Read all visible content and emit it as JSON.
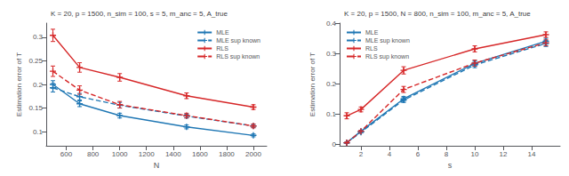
{
  "chart_data": [
    {
      "type": "line",
      "title": "K = 20, p = 1500, n_sim = 100, s = 5, m_anc = 5, A_true",
      "xlabel": "N",
      "ylabel": "Estimation error of T",
      "x": [
        500,
        700,
        1000,
        1500,
        2000
      ],
      "xlim": [
        450,
        2100
      ],
      "ylim": [
        0.07,
        0.33
      ],
      "xticks": [
        600,
        800,
        1000,
        1200,
        1400,
        1600,
        1800,
        2000
      ],
      "yticks": [
        0.1,
        0.15,
        0.2,
        0.25,
        0.3
      ],
      "grid": false,
      "legend": "upper right",
      "series": [
        {
          "name": "MLE",
          "color": "#1f77b4",
          "line_style": "solid",
          "marker": "plus",
          "values": [
            0.2,
            0.159,
            0.134,
            0.11,
            0.092
          ],
          "errors": [
            0.008,
            0.006,
            0.005,
            0.004,
            0.003
          ]
        },
        {
          "name": "MLE sup known",
          "color": "#1f77b4",
          "line_style": "dashed",
          "marker": "plus",
          "values": [
            0.193,
            0.174,
            0.156,
            0.133,
            0.112
          ],
          "errors": [
            0.009,
            0.007,
            0.006,
            0.004,
            0.003
          ]
        },
        {
          "name": "RLS",
          "color": "#d62728",
          "line_style": "solid",
          "marker": "plus",
          "values": [
            0.304,
            0.236,
            0.215,
            0.176,
            0.152
          ],
          "errors": [
            0.013,
            0.01,
            0.008,
            0.006,
            0.005
          ]
        },
        {
          "name": "RLS sup known",
          "color": "#d62728",
          "line_style": "dashed",
          "marker": "plus",
          "values": [
            0.228,
            0.188,
            0.157,
            0.134,
            0.112
          ],
          "errors": [
            0.011,
            0.009,
            0.007,
            0.005,
            0.004
          ]
        }
      ]
    },
    {
      "type": "line",
      "title": "K = 20, p = 1500, N = 800, n_sim = 100, m_anc = 5, A_true",
      "xlabel": "s",
      "ylabel": "Estimation error of T",
      "x": [
        1,
        2,
        5,
        10,
        15
      ],
      "xlim": [
        0.5,
        16
      ],
      "ylim": [
        -0.005,
        0.4
      ],
      "xticks": [
        2,
        4,
        6,
        8,
        10,
        12,
        14
      ],
      "yticks": [
        0,
        0.1,
        0.2,
        0.3,
        0.4
      ],
      "grid": false,
      "legend": "upper left",
      "series": [
        {
          "name": "MLE",
          "color": "#1f77b4",
          "line_style": "solid",
          "marker": "plus",
          "values": [
            0.005,
            0.043,
            0.15,
            0.267,
            0.34
          ],
          "errors": [
            0.002,
            0.003,
            0.008,
            0.009,
            0.01
          ]
        },
        {
          "name": "MLE sup known",
          "color": "#1f77b4",
          "line_style": "dashed",
          "marker": "plus",
          "values": [
            0.005,
            0.04,
            0.146,
            0.262,
            0.333
          ],
          "errors": [
            0.002,
            0.003,
            0.008,
            0.009,
            0.01
          ]
        },
        {
          "name": "RLS",
          "color": "#d62728",
          "line_style": "solid",
          "marker": "plus",
          "values": [
            0.094,
            0.115,
            0.244,
            0.315,
            0.362
          ],
          "errors": [
            0.01,
            0.008,
            0.012,
            0.01,
            0.009
          ]
        },
        {
          "name": "RLS sup known",
          "color": "#d62728",
          "line_style": "dashed",
          "marker": "plus",
          "values": [
            0.005,
            0.043,
            0.181,
            0.268,
            0.335
          ],
          "errors": [
            0.002,
            0.003,
            0.01,
            0.01,
            0.01
          ]
        }
      ]
    }
  ]
}
